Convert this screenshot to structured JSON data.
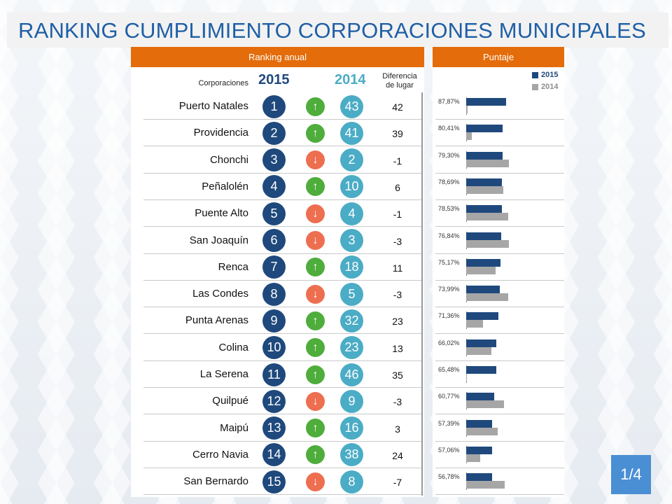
{
  "title": "RANKING CUMPLIMIENTO CORPORACIONES MUNICIPALES",
  "headers": {
    "ranking": "Ranking anual",
    "score": "Puntaje"
  },
  "columns": {
    "corporaciones": "Corporaciones",
    "year2015": "2015",
    "year2014": "2014",
    "diff_line1": "Diferencia",
    "diff_line2": "de lugar"
  },
  "legend": {
    "s2015": "2015",
    "s2014": "2014"
  },
  "colors": {
    "c2015": "#1f497d",
    "c2014_circle": "#4bacc6",
    "c2014_bar": "#a6a6a6",
    "up": "#4ead3b",
    "down": "#ee6e50",
    "header": "#e46c0a",
    "title": "#1f5fa6",
    "badge": "#4a8fd4"
  },
  "page": "1/4",
  "chart_data": {
    "type": "table",
    "rows": [
      {
        "corporation": "Puerto Natales",
        "rank2015": "1",
        "rank2014": "43",
        "direction": "up",
        "diff": "42",
        "score_label": "87,87%",
        "score2015": 87.87,
        "score2014": 3
      },
      {
        "corporation": "Providencia",
        "rank2015": "2",
        "rank2014": "41",
        "direction": "up",
        "diff": "39",
        "score_label": "80,41%",
        "score2015": 80.41,
        "score2014": 12
      },
      {
        "corporation": "Chonchi",
        "rank2015": "3",
        "rank2014": "2",
        "direction": "down",
        "diff": "-1",
        "score_label": "79,30%",
        "score2015": 79.3,
        "score2014": 94
      },
      {
        "corporation": "Peñalolén",
        "rank2015": "4",
        "rank2014": "10",
        "direction": "up",
        "diff": "6",
        "score_label": "78,69%",
        "score2015": 78.69,
        "score2014": 81
      },
      {
        "corporation": "Puente Alto",
        "rank2015": "5",
        "rank2014": "4",
        "direction": "down",
        "diff": "-1",
        "score_label": "78,53%",
        "score2015": 78.53,
        "score2014": 92
      },
      {
        "corporation": "San Joaquín",
        "rank2015": "6",
        "rank2014": "3",
        "direction": "down",
        "diff": "-3",
        "score_label": "76,84%",
        "score2015": 76.84,
        "score2014": 94
      },
      {
        "corporation": "Renca",
        "rank2015": "7",
        "rank2014": "18",
        "direction": "up",
        "diff": "11",
        "score_label": "75,17%",
        "score2015": 75.17,
        "score2014": 65
      },
      {
        "corporation": "Las Condes",
        "rank2015": "8",
        "rank2014": "5",
        "direction": "down",
        "diff": "-3",
        "score_label": "73,99%",
        "score2015": 73.99,
        "score2014": 92
      },
      {
        "corporation": "Punta Arenas",
        "rank2015": "9",
        "rank2014": "32",
        "direction": "up",
        "diff": "23",
        "score_label": "71,36%",
        "score2015": 71.36,
        "score2014": 37
      },
      {
        "corporation": "Colina",
        "rank2015": "10",
        "rank2014": "23",
        "direction": "up",
        "diff": "13",
        "score_label": "66,02%",
        "score2015": 66.02,
        "score2014": 55
      },
      {
        "corporation": "La Serena",
        "rank2015": "11",
        "rank2014": "46",
        "direction": "up",
        "diff": "35",
        "score_label": "65,48%",
        "score2015": 65.48,
        "score2014": 1
      },
      {
        "corporation": "Quilpué",
        "rank2015": "12",
        "rank2014": "9",
        "direction": "down",
        "diff": "-3",
        "score_label": "60,77%",
        "score2015": 60.77,
        "score2014": 83
      },
      {
        "corporation": "Maipú",
        "rank2015": "13",
        "rank2014": "16",
        "direction": "up",
        "diff": "3",
        "score_label": "57,39%",
        "score2015": 57.39,
        "score2014": 69
      },
      {
        "corporation": "Cerro Navia",
        "rank2015": "14",
        "rank2014": "38",
        "direction": "up",
        "diff": "24",
        "score_label": "57,06%",
        "score2015": 57.06,
        "score2014": 31
      },
      {
        "corporation": "San Bernardo",
        "rank2015": "15",
        "rank2014": "8",
        "direction": "down",
        "diff": "-7",
        "score_label": "56,78%",
        "score2015": 56.78,
        "score2014": 84
      }
    ],
    "score_axis_max": 100
  }
}
